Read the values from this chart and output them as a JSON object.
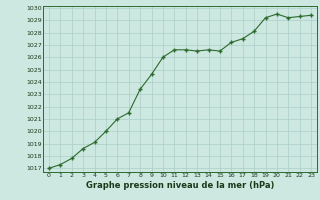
{
  "x": [
    0,
    1,
    2,
    3,
    4,
    5,
    6,
    7,
    8,
    9,
    10,
    11,
    12,
    13,
    14,
    15,
    16,
    17,
    18,
    19,
    20,
    21,
    22,
    23
  ],
  "y": [
    1017.0,
    1017.3,
    1017.8,
    1018.6,
    1019.1,
    1020.0,
    1021.0,
    1021.5,
    1023.4,
    1024.6,
    1026.0,
    1026.6,
    1026.6,
    1026.5,
    1026.6,
    1026.5,
    1027.2,
    1027.5,
    1028.1,
    1029.2,
    1029.5,
    1029.2,
    1029.3,
    1029.4
  ],
  "ylim_min": 1017,
  "ylim_max": 1030,
  "yticks": [
    1017,
    1018,
    1019,
    1020,
    1021,
    1022,
    1023,
    1024,
    1025,
    1026,
    1027,
    1028,
    1029,
    1030
  ],
  "xticks": [
    0,
    1,
    2,
    3,
    4,
    5,
    6,
    7,
    8,
    9,
    10,
    11,
    12,
    13,
    14,
    15,
    16,
    17,
    18,
    19,
    20,
    21,
    22,
    23
  ],
  "xlabel": "Graphe pression niveau de la mer (hPa)",
  "line_color": "#2d6a2d",
  "marker_color": "#2d6a2d",
  "bg_color": "#cce8e0",
  "grid_color": "#aacfc8",
  "text_color": "#1a3a1a",
  "title_color": "#1a3a1a",
  "border_color": "#2d6a2d"
}
